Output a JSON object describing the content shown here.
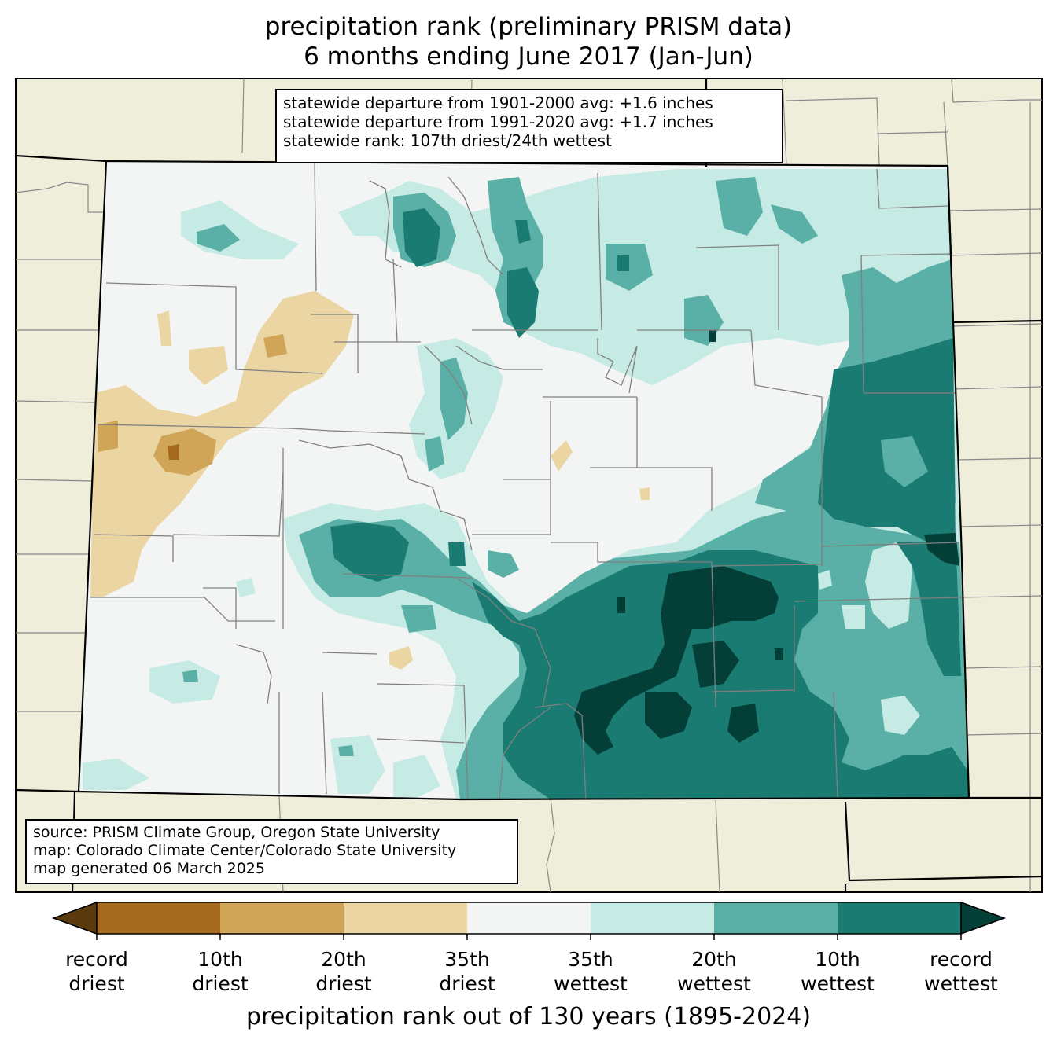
{
  "title": {
    "line1": "precipitation rank (preliminary PRISM data)",
    "line2": "6 months ending June 2017 (Jan-Jun)"
  },
  "stats": {
    "line1": "statewide departure from 1901-2000 avg: +1.6 inches",
    "line2": "statewide departure from 1991-2020 avg: +1.7 inches",
    "line3": "statewide rank: 107th driest/24th wettest"
  },
  "source": {
    "line1": "source: PRISM Climate Group, Oregon State University",
    "line2": "map: Colorado Climate Center/Colorado State University",
    "line3": "map generated 06 March 2025"
  },
  "colorbar": {
    "title": "precipitation rank out of 130 years (1895-2024)",
    "colors": [
      "#5b3a0d",
      "#a56a1e",
      "#d1a558",
      "#ebd6a3",
      "#f3f5f4",
      "#c6eae4",
      "#5ab0a6",
      "#1a7b72",
      "#043f37"
    ],
    "ticks": [
      {
        "line1": "record",
        "line2": "driest"
      },
      {
        "line1": "10th",
        "line2": "driest"
      },
      {
        "line1": "20th",
        "line2": "driest"
      },
      {
        "line1": "35th",
        "line2": "driest"
      },
      {
        "line1": "35th",
        "line2": "wettest"
      },
      {
        "line1": "20th",
        "line2": "wettest"
      },
      {
        "line1": "10th",
        "line2": "wettest"
      },
      {
        "line1": "record",
        "line2": "wettest"
      }
    ]
  },
  "map_colors": {
    "outside": "#efeedb",
    "near_normal": "#f3f5f4",
    "wet_35": "#c6eae4",
    "wet_20": "#5ab0a6",
    "wet_10": "#1a7b72",
    "wet_record": "#043f37",
    "dry_35": "#ebd6a3",
    "dry_20": "#d1a558",
    "dry_10": "#a56a1e"
  }
}
